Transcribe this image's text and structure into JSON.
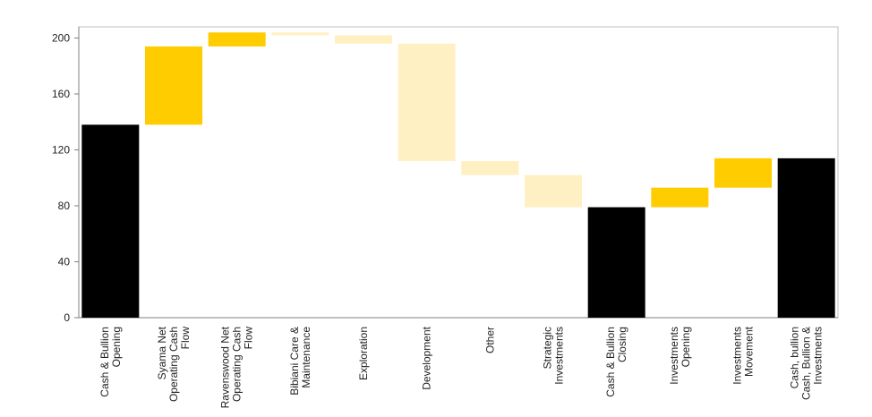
{
  "chart_data": {
    "type": "bar",
    "subtype": "waterfall",
    "title": "",
    "xlabel": "",
    "ylabel": "",
    "ylim": [
      0,
      205
    ],
    "yticks": [
      0,
      40,
      80,
      120,
      160,
      200
    ],
    "grid": false,
    "legend": "none",
    "colors": {
      "total": "#000000",
      "increase": "#ffcc00",
      "decrease": "#fff0c4"
    },
    "bars": [
      {
        "category": [
          "Cash & Bullion",
          "Opening"
        ],
        "kind": "total",
        "start": 0,
        "end": 138
      },
      {
        "category": [
          "Syama Net",
          "Operating Cash",
          "Flow"
        ],
        "kind": "increase",
        "start": 138,
        "end": 194
      },
      {
        "category": [
          "Ravenswood Net",
          "Operating Cash",
          "Flow"
        ],
        "kind": "increase",
        "start": 194,
        "end": 204
      },
      {
        "category": [
          "Bibiani Care &",
          "Maintenance"
        ],
        "kind": "decrease",
        "start": 204,
        "end": 202
      },
      {
        "category": [
          "Exploration"
        ],
        "kind": "decrease",
        "start": 202,
        "end": 196
      },
      {
        "category": [
          "Development"
        ],
        "kind": "decrease",
        "start": 196,
        "end": 112
      },
      {
        "category": [
          "Other"
        ],
        "kind": "decrease",
        "start": 112,
        "end": 102
      },
      {
        "category": [
          "Strategic",
          "Investments"
        ],
        "kind": "decrease",
        "start": 102,
        "end": 79
      },
      {
        "category": [
          "Cash & Bullion",
          "Closing"
        ],
        "kind": "total",
        "start": 0,
        "end": 79
      },
      {
        "category": [
          "Investments",
          "Opening"
        ],
        "kind": "increase",
        "start": 79,
        "end": 93
      },
      {
        "category": [
          "Investments",
          "Movement"
        ],
        "kind": "increase",
        "start": 93,
        "end": 114
      },
      {
        "category": [
          "Cash, bullion",
          "Cash, Bullion &",
          "Investments"
        ],
        "kind": "total",
        "start": 0,
        "end": 114
      }
    ]
  }
}
